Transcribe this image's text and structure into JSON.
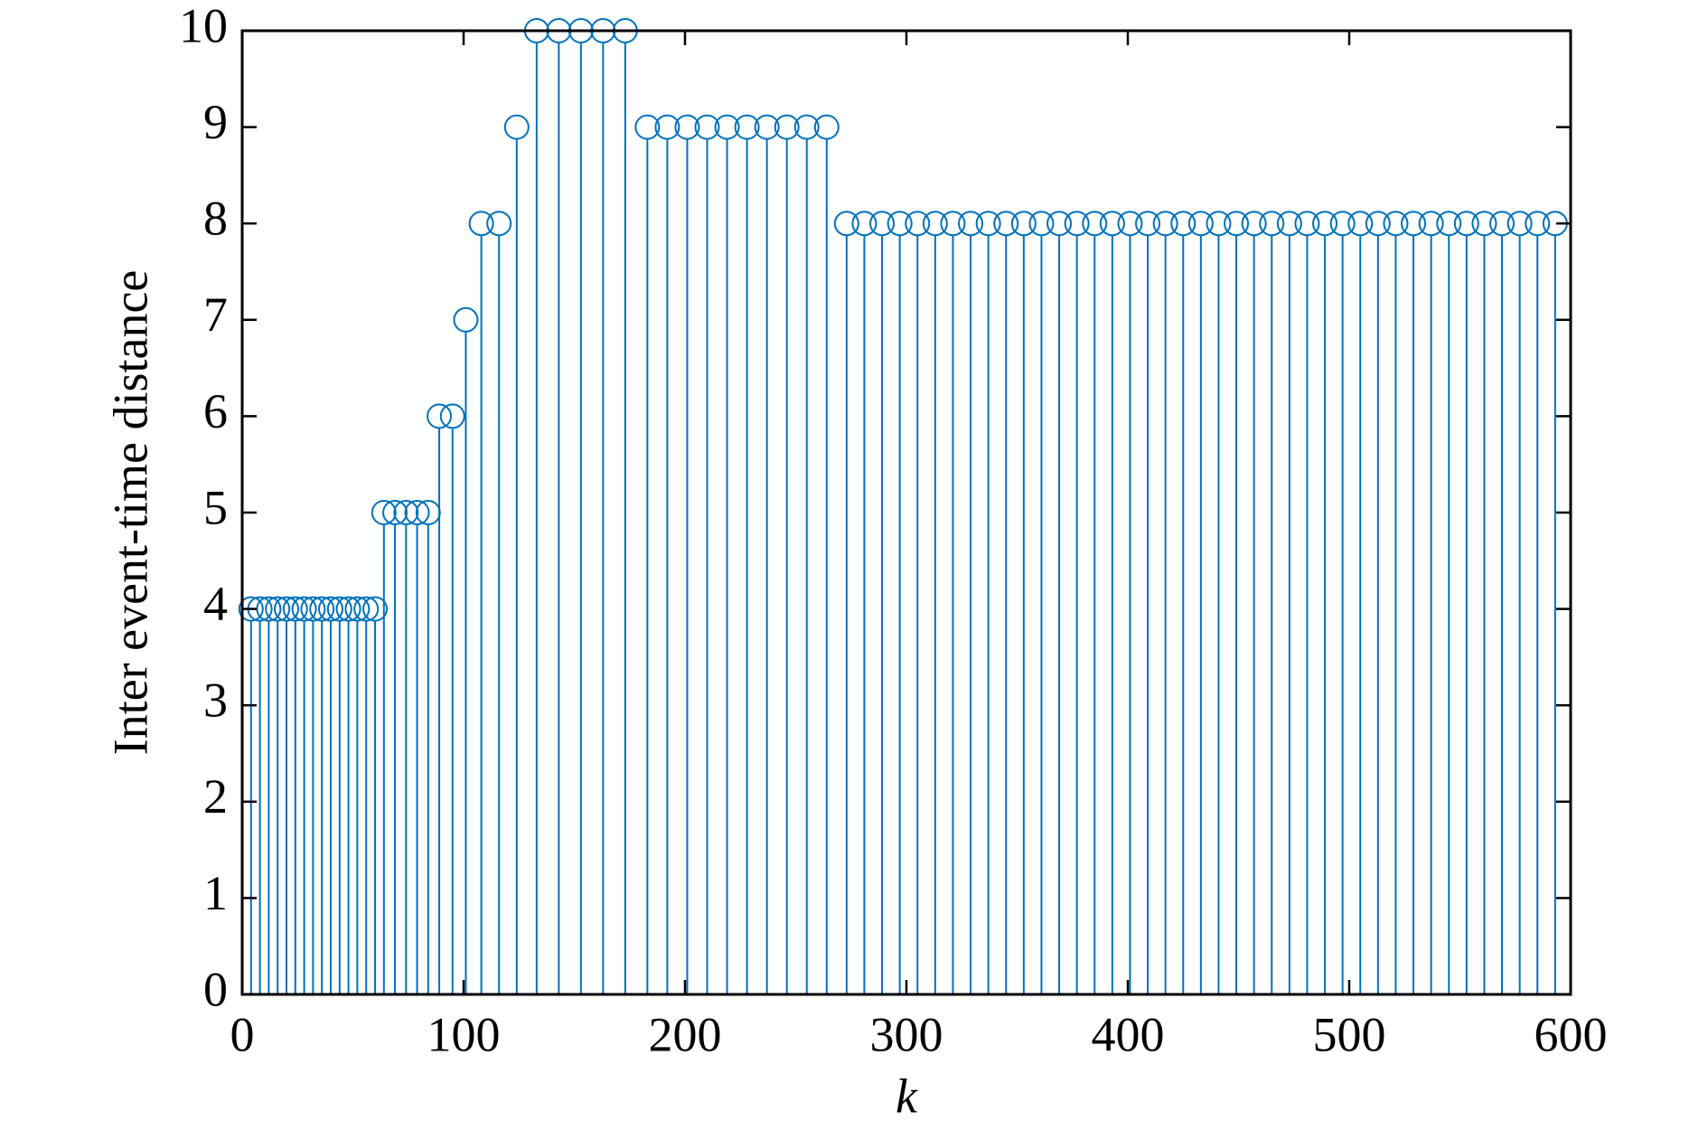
{
  "chart_data": {
    "type": "stem",
    "xlabel": "k",
    "ylabel": "Inter event-time distance",
    "color": "#0072bd",
    "x": [
      4,
      8,
      12,
      16,
      20,
      24,
      28,
      32,
      36,
      40,
      44,
      48,
      52,
      56,
      60,
      64,
      69,
      74,
      79,
      84,
      89,
      95,
      101,
      108,
      116,
      124,
      133,
      143,
      153,
      163,
      173,
      183,
      192,
      201,
      210,
      219,
      228,
      237,
      246,
      255,
      264,
      273,
      281,
      289,
      297,
      305,
      313,
      321,
      329,
      337,
      345,
      353,
      361,
      369,
      377,
      385,
      393,
      401,
      409,
      417,
      425,
      433,
      441,
      449,
      457,
      465,
      473,
      481,
      489,
      497,
      505,
      513,
      521,
      529,
      537,
      545,
      553,
      561,
      569,
      577,
      585,
      593
    ],
    "values": [
      4,
      4,
      4,
      4,
      4,
      4,
      4,
      4,
      4,
      4,
      4,
      4,
      4,
      4,
      4,
      5,
      5,
      5,
      5,
      5,
      6,
      6,
      7,
      8,
      8,
      9,
      10,
      10,
      10,
      10,
      10,
      9,
      9,
      9,
      9,
      9,
      9,
      9,
      9,
      9,
      9,
      8,
      8,
      8,
      8,
      8,
      8,
      8,
      8,
      8,
      8,
      8,
      8,
      8,
      8,
      8,
      8,
      8,
      8,
      8,
      8,
      8,
      8,
      8,
      8,
      8,
      8,
      8,
      8,
      8,
      8,
      8,
      8,
      8,
      8,
      8,
      8,
      8,
      8,
      8,
      8,
      8
    ],
    "xlim": [
      0,
      600
    ],
    "ylim": [
      0,
      10
    ],
    "xticks": [
      0,
      100,
      200,
      300,
      400,
      500,
      600
    ],
    "yticks": [
      0,
      1,
      2,
      3,
      4,
      5,
      6,
      7,
      8,
      9,
      10
    ]
  }
}
